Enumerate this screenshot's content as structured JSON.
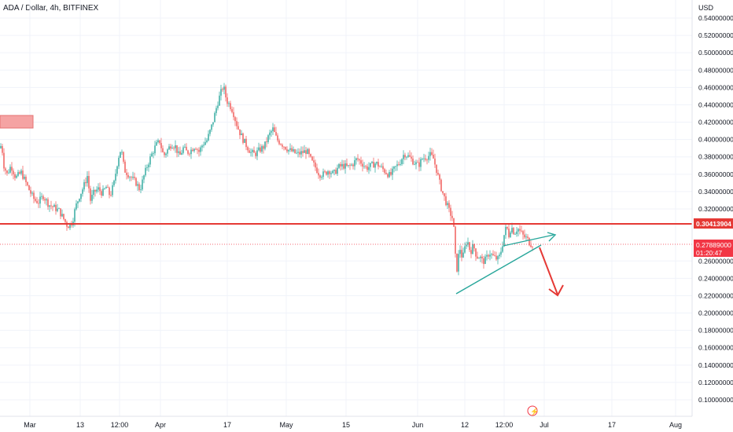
{
  "header": {
    "title": "ADA / Dollar, 4h, BITFINEX"
  },
  "chart_data": {
    "type": "candlestick",
    "currency": "USD",
    "y_ticks": [
      "0.54000000",
      "0.52000000",
      "0.50000000",
      "0.48000000",
      "0.46000000",
      "0.44000000",
      "0.42000000",
      "0.40000000",
      "0.38000000",
      "0.36000000",
      "0.34000000",
      "0.32000000",
      "0.26000000",
      "0.24000000",
      "0.22000000",
      "0.20000000",
      "0.18000000",
      "0.16000000",
      "0.14000000",
      "0.12000000",
      "0.10000000"
    ],
    "x_ticks": [
      "Mar",
      "13",
      "12:00",
      "Apr",
      "17",
      "May",
      "15",
      "Jun",
      "12",
      "12:00",
      "Jul",
      "17",
      "Aug"
    ],
    "ylim": [
      0.08,
      0.56
    ],
    "price_path": [
      [
        0,
        0.39
      ],
      [
        2,
        0.395
      ],
      [
        5,
        0.37
      ],
      [
        9,
        0.36
      ],
      [
        14,
        0.37
      ],
      [
        20,
        0.356
      ],
      [
        27,
        0.362
      ],
      [
        33,
        0.35
      ],
      [
        38,
        0.34
      ],
      [
        44,
        0.33
      ],
      [
        49,
        0.328
      ],
      [
        55,
        0.335
      ],
      [
        62,
        0.325
      ],
      [
        68,
        0.322
      ],
      [
        75,
        0.318
      ],
      [
        80,
        0.31
      ],
      [
        86,
        0.3
      ],
      [
        92,
        0.305
      ],
      [
        96,
        0.322
      ],
      [
        101,
        0.335
      ],
      [
        106,
        0.345
      ],
      [
        111,
        0.358
      ],
      [
        115,
        0.33
      ],
      [
        120,
        0.34
      ],
      [
        125,
        0.343
      ],
      [
        130,
        0.338
      ],
      [
        135,
        0.345
      ],
      [
        140,
        0.335
      ],
      [
        145,
        0.35
      ],
      [
        150,
        0.378
      ],
      [
        154,
        0.39
      ],
      [
        158,
        0.365
      ],
      [
        163,
        0.36
      ],
      [
        168,
        0.355
      ],
      [
        173,
        0.35
      ],
      [
        178,
        0.342
      ],
      [
        183,
        0.358
      ],
      [
        188,
        0.372
      ],
      [
        193,
        0.383
      ],
      [
        198,
        0.393
      ],
      [
        203,
        0.398
      ],
      [
        208,
        0.381
      ],
      [
        213,
        0.388
      ],
      [
        218,
        0.395
      ],
      [
        223,
        0.392
      ],
      [
        228,
        0.38
      ],
      [
        233,
        0.39
      ],
      [
        238,
        0.385
      ],
      [
        243,
        0.388
      ],
      [
        248,
        0.393
      ],
      [
        253,
        0.386
      ],
      [
        258,
        0.395
      ],
      [
        263,
        0.399
      ],
      [
        268,
        0.412
      ],
      [
        272,
        0.425
      ],
      [
        276,
        0.44
      ],
      [
        280,
        0.452
      ],
      [
        284,
        0.462
      ],
      [
        288,
        0.445
      ],
      [
        292,
        0.44
      ],
      [
        296,
        0.433
      ],
      [
        300,
        0.42
      ],
      [
        304,
        0.41
      ],
      [
        309,
        0.4
      ],
      [
        314,
        0.392
      ],
      [
        319,
        0.385
      ],
      [
        324,
        0.383
      ],
      [
        330,
        0.388
      ],
      [
        336,
        0.392
      ],
      [
        342,
        0.405
      ],
      [
        347,
        0.412
      ],
      [
        352,
        0.4
      ],
      [
        357,
        0.396
      ],
      [
        362,
        0.392
      ],
      [
        367,
        0.388
      ],
      [
        372,
        0.386
      ],
      [
        378,
        0.383
      ],
      [
        384,
        0.385
      ],
      [
        390,
        0.387
      ],
      [
        396,
        0.375
      ],
      [
        401,
        0.368
      ],
      [
        406,
        0.36
      ],
      [
        412,
        0.36
      ],
      [
        418,
        0.365
      ],
      [
        424,
        0.36
      ],
      [
        430,
        0.368
      ],
      [
        436,
        0.37
      ],
      [
        442,
        0.368
      ],
      [
        448,
        0.371
      ],
      [
        454,
        0.378
      ],
      [
        460,
        0.373
      ],
      [
        466,
        0.367
      ],
      [
        472,
        0.37
      ],
      [
        478,
        0.373
      ],
      [
        484,
        0.368
      ],
      [
        490,
        0.363
      ],
      [
        496,
        0.358
      ],
      [
        502,
        0.367
      ],
      [
        508,
        0.373
      ],
      [
        514,
        0.384
      ],
      [
        520,
        0.38
      ],
      [
        526,
        0.374
      ],
      [
        532,
        0.37
      ],
      [
        537,
        0.378
      ],
      [
        542,
        0.38
      ],
      [
        547,
        0.382
      ],
      [
        551,
        0.378
      ],
      [
        555,
        0.365
      ],
      [
        559,
        0.35
      ],
      [
        563,
        0.338
      ],
      [
        567,
        0.328
      ],
      [
        571,
        0.318
      ],
      [
        575,
        0.31
      ],
      [
        578,
        0.29
      ],
      [
        580,
        0.24
      ],
      [
        582,
        0.262
      ],
      [
        585,
        0.274
      ],
      [
        588,
        0.262
      ],
      [
        591,
        0.275
      ],
      [
        594,
        0.285
      ],
      [
        598,
        0.27
      ],
      [
        602,
        0.278
      ],
      [
        606,
        0.265
      ],
      [
        610,
        0.265
      ],
      [
        614,
        0.259
      ],
      [
        618,
        0.262
      ],
      [
        622,
        0.27
      ],
      [
        626,
        0.266
      ],
      [
        630,
        0.263
      ],
      [
        634,
        0.262
      ],
      [
        638,
        0.275
      ],
      [
        641,
        0.29
      ],
      [
        644,
        0.3
      ],
      [
        647,
        0.29
      ],
      [
        650,
        0.3
      ],
      [
        654,
        0.292
      ],
      [
        658,
        0.298
      ],
      [
        662,
        0.293
      ],
      [
        666,
        0.288
      ],
      [
        670,
        0.286
      ],
      [
        674,
        0.28
      ],
      [
        678,
        0.279
      ]
    ],
    "resistance_level": "0.30413904",
    "current_price": "0.27889000",
    "countdown": "01:20:47",
    "resistance_color": "#e53935",
    "current_color": "#f23645",
    "trendline_color": "#26a69a",
    "up_color": "#26a69a",
    "down_color": "#ef5350"
  }
}
